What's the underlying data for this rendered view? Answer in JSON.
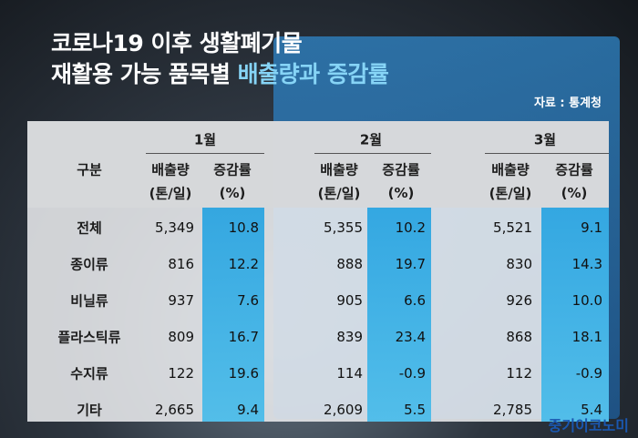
{
  "header": {
    "title_line1": "코로나19 이후 생활폐기물",
    "title_line2": "재활용 가능 품목별",
    "title_line2_highlight": "배출량과 증감률",
    "source": "자료 : 통계청"
  },
  "table": {
    "row_header": "구분",
    "months": [
      "1월",
      "2월",
      "3월"
    ],
    "column_labels": [
      [
        "배출량",
        "(톤/일)"
      ],
      [
        "증감률",
        "(%)"
      ]
    ],
    "rows": [
      {
        "label": "전체",
        "cells": [
          "5,349",
          "10.8",
          "5,355",
          "10.2",
          "5,521",
          "9.1"
        ]
      },
      {
        "label": "종이류",
        "cells": [
          "816",
          "12.2",
          "888",
          "19.7",
          "830",
          "14.3"
        ]
      },
      {
        "label": "비닐류",
        "cells": [
          "937",
          "7.6",
          "905",
          "6.6",
          "926",
          "10.0"
        ]
      },
      {
        "label": "플라스틱류",
        "cells": [
          "809",
          "16.7",
          "839",
          "23.4",
          "868",
          "18.1"
        ]
      },
      {
        "label": "수지류",
        "cells": [
          "122",
          "19.6",
          "114",
          "-0.9",
          "112",
          "-0.9"
        ]
      },
      {
        "label": "기타",
        "cells": [
          "2,665",
          "9.4",
          "2,609",
          "5.5",
          "2,785",
          "5.4"
        ]
      }
    ]
  },
  "footer": {
    "brand": "중기이코노미"
  }
}
